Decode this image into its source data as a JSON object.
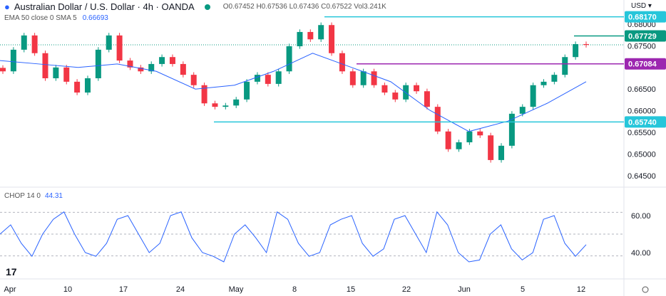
{
  "header": {
    "title": "Australian Dollar / U.S. Dollar · 4h · OANDA",
    "open": "O0.67452",
    "high": "H0.67536",
    "low": "L0.67436",
    "close": "C0.67522",
    "vol": "Vol3.241K"
  },
  "ema": {
    "label": "EMA 50 close 0 SMA 5",
    "value": "0.66693"
  },
  "chop": {
    "label": "CHOP 14 0",
    "value": "44.31"
  },
  "currency": "USD",
  "colors": {
    "up": "#089981",
    "down": "#f23645",
    "ema": "#2962ff",
    "cyan": "#26c6da",
    "green": "#089981",
    "purple": "#9c27b0"
  },
  "chart_data": {
    "type": "candlestick",
    "price_ticks": [
      "0.68000",
      "0.67500",
      "0.66500",
      "0.66000",
      "0.65500",
      "0.65000",
      "0.64500"
    ],
    "ylim": [
      0.6425,
      0.6835
    ],
    "x_ticks": [
      "Apr",
      "10",
      "17",
      "24",
      "May",
      "8",
      "15",
      "22",
      "Jun",
      "5",
      "12"
    ],
    "closes": [
      0.6691,
      0.6741,
      0.6774,
      0.6733,
      0.6675,
      0.67,
      0.6667,
      0.6642,
      0.6675,
      0.6741,
      0.6774,
      0.6716,
      0.67,
      0.6691,
      0.6708,
      0.6724,
      0.6708,
      0.6683,
      0.6659,
      0.6617,
      0.6609,
      0.6612,
      0.6626,
      0.6667,
      0.6683,
      0.6662,
      0.6691,
      0.6749,
      0.6782,
      0.6765,
      0.6798,
      0.6733,
      0.6691,
      0.6659,
      0.6691,
      0.6659,
      0.6642,
      0.6626,
      0.6659,
      0.6645,
      0.6609,
      0.6552,
      0.6511,
      0.6527,
      0.6552,
      0.6543,
      0.6486,
      0.6519,
      0.6593,
      0.6609,
      0.6659,
      0.6667,
      0.6683,
      0.6724,
      0.6754,
      0.6752
    ],
    "ema_points": [
      0.6716,
      0.6708,
      0.67,
      0.6708,
      0.6691,
      0.665,
      0.6659,
      0.6691,
      0.6733,
      0.67,
      0.6667,
      0.6601,
      0.6552,
      0.6576,
      0.6617,
      0.6667
    ],
    "levels": [
      {
        "value": "0.68170",
        "color": "#26c6da"
      },
      {
        "value": "0.67729",
        "color": "#089981"
      },
      {
        "value": "0.67084",
        "color": "#9c27b0"
      },
      {
        "value": "0.65740",
        "color": "#26c6da"
      }
    ],
    "last_price": 0.67522,
    "chop_ticks": [
      "60.00",
      "40.00"
    ],
    "chop_values": [
      50,
      55,
      45,
      38,
      50,
      58,
      62,
      50,
      40,
      38,
      45,
      58,
      60,
      50,
      40,
      45,
      60,
      62,
      48,
      40,
      38,
      35,
      50,
      55,
      48,
      40,
      62,
      58,
      45,
      38,
      40,
      55,
      58,
      60,
      45,
      38,
      42,
      58,
      60,
      50,
      40,
      62,
      55,
      40,
      35,
      36,
      50,
      55,
      42,
      36,
      40,
      58,
      60,
      45,
      38,
      44.31
    ]
  }
}
